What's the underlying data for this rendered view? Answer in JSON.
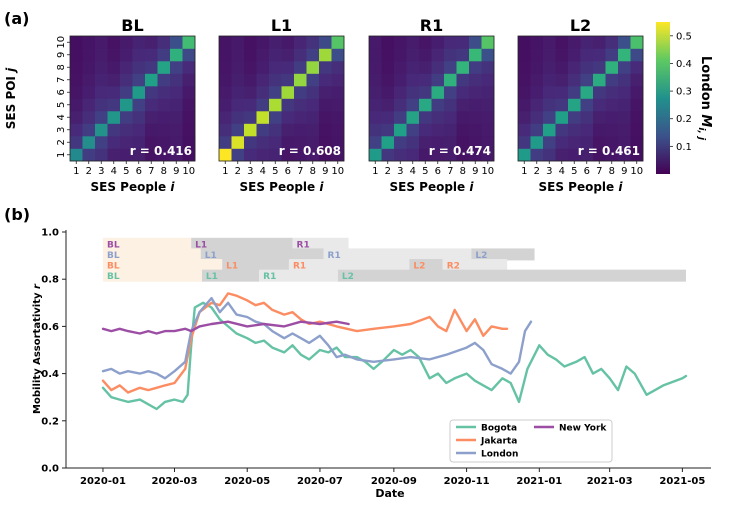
{
  "chart_data": [
    {
      "type": "heatmap",
      "panel_label": "(a)",
      "xlabel_text": "SES People ",
      "xlabel_var": "i",
      "ylabel_text": "SES POI ",
      "ylabel_var": "j",
      "ticks": [
        "1",
        "2",
        "3",
        "4",
        "5",
        "6",
        "7",
        "8",
        "9",
        "10"
      ],
      "colorbar_label_text": "London ",
      "colorbar_label_var": "M",
      "colorbar_label_sub": "i, j",
      "colorbar_ticks": [
        "0.1",
        "0.2",
        "0.3",
        "0.4",
        "0.5"
      ],
      "colorbar_range": [
        0.0,
        0.55
      ],
      "colors": {
        "low": "#440154",
        "mid": "#21918c",
        "high": "#fde725"
      },
      "heatmaps": [
        {
          "title": "BL",
          "r_text": "r = 0.416",
          "diag": [
            0.26,
            0.27,
            0.28,
            0.29,
            0.29,
            0.3,
            0.31,
            0.32,
            0.35,
            0.38
          ]
        },
        {
          "title": "L1",
          "r_text": "r = 0.608",
          "diag": [
            0.55,
            0.52,
            0.5,
            0.5,
            0.48,
            0.47,
            0.46,
            0.46,
            0.47,
            0.4
          ]
        },
        {
          "title": "R1",
          "r_text": "r = 0.474",
          "diag": [
            0.3,
            0.31,
            0.31,
            0.32,
            0.33,
            0.34,
            0.35,
            0.36,
            0.37,
            0.4
          ]
        },
        {
          "title": "L2",
          "r_text": "r = 0.461",
          "diag": [
            0.3,
            0.3,
            0.31,
            0.31,
            0.32,
            0.33,
            0.34,
            0.35,
            0.36,
            0.39
          ]
        }
      ]
    },
    {
      "type": "line",
      "panel_label": "(b)",
      "xlabel": "Date",
      "ylabel_text": "Mobility Assortativity ",
      "ylabel_var": "r",
      "ylim": [
        0.0,
        1.0
      ],
      "yticks": [
        "0.0",
        "0.2",
        "0.4",
        "0.6",
        "0.8",
        "1.0"
      ],
      "xlim": [
        "2019-12-01",
        "2021-05-25"
      ],
      "xticks": [
        "2020-01",
        "2020-03",
        "2020-05",
        "2020-07",
        "2020-09",
        "2020-11",
        "2021-01",
        "2021-03",
        "2021-05"
      ],
      "series": [
        {
          "name": "Bogota",
          "color": "#66c2a5",
          "points": [
            [
              "2020-01-01",
              0.34
            ],
            [
              "2020-01-08",
              0.3
            ],
            [
              "2020-01-15",
              0.29
            ],
            [
              "2020-01-22",
              0.28
            ],
            [
              "2020-02-01",
              0.29
            ],
            [
              "2020-02-08",
              0.27
            ],
            [
              "2020-02-15",
              0.25
            ],
            [
              "2020-02-22",
              0.28
            ],
            [
              "2020-03-01",
              0.29
            ],
            [
              "2020-03-08",
              0.28
            ],
            [
              "2020-03-12",
              0.31
            ],
            [
              "2020-03-15",
              0.52
            ],
            [
              "2020-03-18",
              0.68
            ],
            [
              "2020-03-25",
              0.7
            ],
            [
              "2020-04-01",
              0.68
            ],
            [
              "2020-04-08",
              0.63
            ],
            [
              "2020-04-15",
              0.6
            ],
            [
              "2020-04-22",
              0.57
            ],
            [
              "2020-05-01",
              0.55
            ],
            [
              "2020-05-08",
              0.53
            ],
            [
              "2020-05-15",
              0.54
            ],
            [
              "2020-05-22",
              0.51
            ],
            [
              "2020-06-01",
              0.49
            ],
            [
              "2020-06-08",
              0.52
            ],
            [
              "2020-06-15",
              0.48
            ],
            [
              "2020-06-22",
              0.46
            ],
            [
              "2020-07-01",
              0.5
            ],
            [
              "2020-07-08",
              0.49
            ],
            [
              "2020-07-15",
              0.51
            ],
            [
              "2020-07-22",
              0.47
            ],
            [
              "2020-08-01",
              0.47
            ],
            [
              "2020-08-08",
              0.45
            ],
            [
              "2020-08-15",
              0.42
            ],
            [
              "2020-08-22",
              0.45
            ],
            [
              "2020-09-01",
              0.5
            ],
            [
              "2020-09-08",
              0.48
            ],
            [
              "2020-09-15",
              0.5
            ],
            [
              "2020-09-22",
              0.47
            ],
            [
              "2020-10-01",
              0.38
            ],
            [
              "2020-10-08",
              0.4
            ],
            [
              "2020-10-15",
              0.36
            ],
            [
              "2020-10-22",
              0.38
            ],
            [
              "2020-11-01",
              0.4
            ],
            [
              "2020-11-08",
              0.37
            ],
            [
              "2020-11-15",
              0.35
            ],
            [
              "2020-11-22",
              0.33
            ],
            [
              "2020-12-01",
              0.38
            ],
            [
              "2020-12-08",
              0.36
            ],
            [
              "2020-12-15",
              0.28
            ],
            [
              "2020-12-22",
              0.42
            ],
            [
              "2021-01-01",
              0.52
            ],
            [
              "2021-01-08",
              0.48
            ],
            [
              "2021-01-15",
              0.46
            ],
            [
              "2021-01-22",
              0.43
            ],
            [
              "2021-02-01",
              0.45
            ],
            [
              "2021-02-08",
              0.47
            ],
            [
              "2021-02-15",
              0.4
            ],
            [
              "2021-02-22",
              0.42
            ],
            [
              "2021-03-01",
              0.38
            ],
            [
              "2021-03-08",
              0.33
            ],
            [
              "2021-03-15",
              0.43
            ],
            [
              "2021-03-22",
              0.4
            ],
            [
              "2021-04-01",
              0.31
            ],
            [
              "2021-04-15",
              0.35
            ],
            [
              "2021-05-01",
              0.38
            ],
            [
              "2021-05-04",
              0.39
            ]
          ]
        },
        {
          "name": "Jakarta",
          "color": "#fc8d62",
          "points": [
            [
              "2020-01-01",
              0.37
            ],
            [
              "2020-01-08",
              0.33
            ],
            [
              "2020-01-15",
              0.35
            ],
            [
              "2020-01-22",
              0.32
            ],
            [
              "2020-02-01",
              0.34
            ],
            [
              "2020-02-08",
              0.33
            ],
            [
              "2020-02-15",
              0.34
            ],
            [
              "2020-02-22",
              0.35
            ],
            [
              "2020-03-01",
              0.36
            ],
            [
              "2020-03-10",
              0.42
            ],
            [
              "2020-03-15",
              0.55
            ],
            [
              "2020-03-22",
              0.66
            ],
            [
              "2020-04-01",
              0.7
            ],
            [
              "2020-04-08",
              0.69
            ],
            [
              "2020-04-15",
              0.74
            ],
            [
              "2020-04-22",
              0.73
            ],
            [
              "2020-05-01",
              0.71
            ],
            [
              "2020-05-08",
              0.69
            ],
            [
              "2020-05-15",
              0.7
            ],
            [
              "2020-05-22",
              0.67
            ],
            [
              "2020-06-01",
              0.65
            ],
            [
              "2020-06-08",
              0.66
            ],
            [
              "2020-06-15",
              0.63
            ],
            [
              "2020-06-22",
              0.61
            ],
            [
              "2020-07-01",
              0.62
            ],
            [
              "2020-07-15",
              0.6
            ],
            [
              "2020-08-01",
              0.58
            ],
            [
              "2020-08-15",
              0.59
            ],
            [
              "2020-09-01",
              0.6
            ],
            [
              "2020-09-15",
              0.61
            ],
            [
              "2020-10-01",
              0.64
            ],
            [
              "2020-10-08",
              0.6
            ],
            [
              "2020-10-15",
              0.58
            ],
            [
              "2020-10-22",
              0.67
            ],
            [
              "2020-11-01",
              0.58
            ],
            [
              "2020-11-08",
              0.63
            ],
            [
              "2020-11-15",
              0.56
            ],
            [
              "2020-11-22",
              0.6
            ],
            [
              "2020-12-01",
              0.59
            ],
            [
              "2020-12-05",
              0.59
            ]
          ]
        },
        {
          "name": "London",
          "color": "#8da0cb",
          "points": [
            [
              "2020-01-01",
              0.41
            ],
            [
              "2020-01-08",
              0.42
            ],
            [
              "2020-01-15",
              0.4
            ],
            [
              "2020-01-22",
              0.41
            ],
            [
              "2020-02-01",
              0.4
            ],
            [
              "2020-02-08",
              0.41
            ],
            [
              "2020-02-15",
              0.4
            ],
            [
              "2020-02-22",
              0.38
            ],
            [
              "2020-03-01",
              0.41
            ],
            [
              "2020-03-10",
              0.45
            ],
            [
              "2020-03-15",
              0.58
            ],
            [
              "2020-03-22",
              0.66
            ],
            [
              "2020-04-01",
              0.72
            ],
            [
              "2020-04-08",
              0.66
            ],
            [
              "2020-04-15",
              0.7
            ],
            [
              "2020-04-22",
              0.65
            ],
            [
              "2020-05-01",
              0.64
            ],
            [
              "2020-05-08",
              0.62
            ],
            [
              "2020-05-15",
              0.61
            ],
            [
              "2020-05-22",
              0.58
            ],
            [
              "2020-06-01",
              0.55
            ],
            [
              "2020-06-08",
              0.57
            ],
            [
              "2020-06-15",
              0.55
            ],
            [
              "2020-06-22",
              0.53
            ],
            [
              "2020-07-01",
              0.56
            ],
            [
              "2020-07-08",
              0.52
            ],
            [
              "2020-07-15",
              0.47
            ],
            [
              "2020-07-22",
              0.48
            ],
            [
              "2020-08-01",
              0.46
            ],
            [
              "2020-08-15",
              0.45
            ],
            [
              "2020-09-01",
              0.46
            ],
            [
              "2020-09-15",
              0.47
            ],
            [
              "2020-10-01",
              0.46
            ],
            [
              "2020-10-15",
              0.48
            ],
            [
              "2020-11-01",
              0.51
            ],
            [
              "2020-11-08",
              0.53
            ],
            [
              "2020-11-15",
              0.5
            ],
            [
              "2020-11-22",
              0.44
            ],
            [
              "2020-12-01",
              0.42
            ],
            [
              "2020-12-08",
              0.4
            ],
            [
              "2020-12-15",
              0.45
            ],
            [
              "2020-12-20",
              0.58
            ],
            [
              "2020-12-25",
              0.62
            ]
          ]
        },
        {
          "name": "New York",
          "color": "#9c4ea4",
          "points": [
            [
              "2020-01-01",
              0.59
            ],
            [
              "2020-01-08",
              0.58
            ],
            [
              "2020-01-15",
              0.59
            ],
            [
              "2020-01-22",
              0.58
            ],
            [
              "2020-02-01",
              0.57
            ],
            [
              "2020-02-08",
              0.58
            ],
            [
              "2020-02-15",
              0.57
            ],
            [
              "2020-02-22",
              0.58
            ],
            [
              "2020-03-01",
              0.58
            ],
            [
              "2020-03-10",
              0.59
            ],
            [
              "2020-03-15",
              0.58
            ],
            [
              "2020-03-22",
              0.6
            ],
            [
              "2020-04-01",
              0.61
            ],
            [
              "2020-04-15",
              0.62
            ],
            [
              "2020-05-01",
              0.6
            ],
            [
              "2020-05-15",
              0.61
            ],
            [
              "2020-06-01",
              0.6
            ],
            [
              "2020-06-15",
              0.62
            ],
            [
              "2020-07-01",
              0.61
            ],
            [
              "2020-07-15",
              0.62
            ],
            [
              "2020-07-25",
              0.61
            ]
          ]
        }
      ],
      "phase_bars": [
        {
          "city": "New York",
          "color": "#9c4ea4",
          "y": 0.95,
          "segments": [
            {
              "label": "BL",
              "start": "2020-01-01",
              "end": "2020-03-15"
            },
            {
              "label": "L1",
              "start": "2020-03-15",
              "end": "2020-06-08"
            },
            {
              "label": "R1",
              "start": "2020-06-08",
              "end": "2020-07-25"
            }
          ]
        },
        {
          "city": "London",
          "color": "#8da0cb",
          "y": 0.905,
          "segments": [
            {
              "label": "BL",
              "start": "2020-01-01",
              "end": "2020-03-23"
            },
            {
              "label": "L1",
              "start": "2020-03-23",
              "end": "2020-07-04"
            },
            {
              "label": "R1",
              "start": "2020-07-04",
              "end": "2020-11-05"
            },
            {
              "label": "L2",
              "start": "2020-11-05",
              "end": "2020-12-28"
            }
          ]
        },
        {
          "city": "Jakarta",
          "color": "#fc8d62",
          "y": 0.86,
          "segments": [
            {
              "label": "BL",
              "start": "2020-01-01",
              "end": "2020-04-10"
            },
            {
              "label": "L1",
              "start": "2020-04-10",
              "end": "2020-06-05"
            },
            {
              "label": "R1",
              "start": "2020-06-05",
              "end": "2020-09-14"
            },
            {
              "label": "L2",
              "start": "2020-09-14",
              "end": "2020-10-12"
            },
            {
              "label": "R2",
              "start": "2020-10-12",
              "end": "2020-12-05"
            }
          ]
        },
        {
          "city": "Bogota",
          "color": "#66c2a5",
          "y": 0.815,
          "segments": [
            {
              "label": "BL",
              "start": "2020-01-01",
              "end": "2020-03-24"
            },
            {
              "label": "L1",
              "start": "2020-03-24",
              "end": "2020-05-11"
            },
            {
              "label": "R1",
              "start": "2020-05-11",
              "end": "2020-07-16"
            },
            {
              "label": "L2",
              "start": "2020-07-16",
              "end": "2021-05-04"
            }
          ]
        }
      ],
      "legend": [
        "Bogota",
        "Jakarta",
        "London",
        "New York"
      ],
      "legend_position": "lower-right"
    }
  ]
}
